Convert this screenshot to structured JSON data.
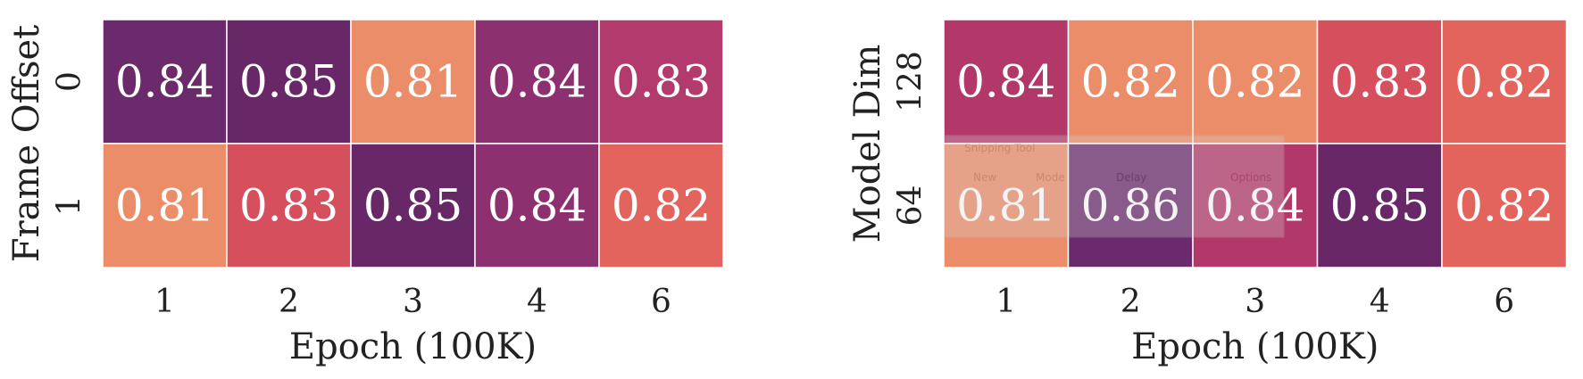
{
  "chart_data": [
    {
      "type": "heatmap",
      "xlabel": "Epoch (100K)",
      "ylabel": "Frame Offset",
      "x_categories": [
        "1",
        "2",
        "3",
        "4",
        "6"
      ],
      "y_categories": [
        "0",
        "1"
      ],
      "values": [
        [
          0.84,
          0.85,
          0.81,
          0.84,
          0.83
        ],
        [
          0.81,
          0.83,
          0.85,
          0.84,
          0.82
        ]
      ],
      "value_labels": [
        [
          "0.84",
          "0.85",
          "0.81",
          "0.84",
          "0.83"
        ],
        [
          "0.81",
          "0.83",
          "0.85",
          "0.84",
          "0.82"
        ]
      ],
      "cell_colors": [
        [
          "#6B2A6C",
          "#682868",
          "#EC8D6A",
          "#8C306F",
          "#B23A6C"
        ],
        [
          "#EC8D6A",
          "#D64F5D",
          "#682868",
          "#8C306F",
          "#E2645C"
        ]
      ]
    },
    {
      "type": "heatmap",
      "xlabel": "Epoch (100K)",
      "ylabel": "Model Dim",
      "x_categories": [
        "1",
        "2",
        "3",
        "4",
        "6"
      ],
      "y_categories": [
        "128",
        "64"
      ],
      "values": [
        [
          0.84,
          0.82,
          0.82,
          0.83,
          0.82
        ],
        [
          0.81,
          0.86,
          0.84,
          0.85,
          0.82
        ]
      ],
      "value_labels": [
        [
          "0.84",
          "0.82",
          "0.82",
          "0.83",
          "0.82"
        ],
        [
          "0.81",
          "0.86",
          "0.84",
          "0.85",
          "0.82"
        ]
      ],
      "cell_colors": [
        [
          "#B3386A",
          "#EC8D6A",
          "#EC8D6A",
          "#D64F5D",
          "#E2645C"
        ],
        [
          "#EC8D6A",
          "#6A2A6C",
          "#B3386A",
          "#682868",
          "#E2645C"
        ]
      ]
    }
  ],
  "overlay": {
    "title": "Snipping Tool",
    "new_label": "New",
    "mode_label": "Mode",
    "delay_label": "Delay",
    "options_label": "Options"
  }
}
